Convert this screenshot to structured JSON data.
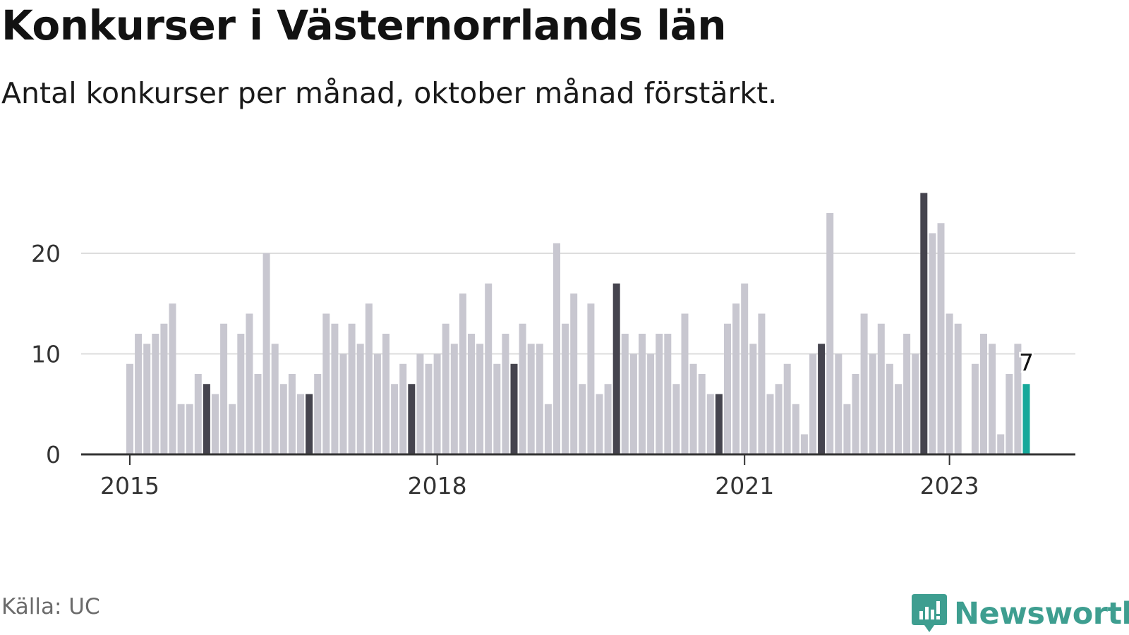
{
  "header": {
    "title": "Konkurser i Västernorrlands län",
    "subtitle": "Antal konkurser per månad, oktober månad förstärkt."
  },
  "footer": {
    "source": "Källa: UC",
    "brand": "Newsworthy",
    "brand_icon": "newsworthy-logo-icon"
  },
  "colors": {
    "bar": "#c8c7d0",
    "highlight": "#45444e",
    "latest": "#16a89a",
    "grid": "#dddddd",
    "axis": "#333333",
    "brand": "#3e9e90"
  },
  "chart_data": {
    "type": "bar",
    "x_start": "2015-01",
    "x_end": "2023-10",
    "x_tick_labels": [
      "2015",
      "2018",
      "2021",
      "2023"
    ],
    "y_ticks": [
      0,
      10,
      20
    ],
    "ylim": [
      0,
      28
    ],
    "grid": true,
    "highlight_month": "oktober",
    "last_value_label": "7",
    "series": [
      {
        "values": [
          9,
          12,
          11,
          12,
          13,
          15,
          5,
          5,
          8,
          7,
          6,
          13,
          5,
          12,
          14,
          8,
          20,
          11,
          7,
          8,
          6,
          6,
          8,
          14,
          13,
          10,
          13,
          11,
          15,
          10,
          12,
          7,
          9,
          7,
          10,
          9,
          10,
          13,
          11,
          16,
          12,
          11,
          17,
          9,
          12,
          9,
          13,
          11,
          11,
          5,
          21,
          13,
          16,
          7,
          15,
          6,
          7,
          17,
          12,
          10,
          12,
          10,
          12,
          12,
          7,
          14,
          9,
          8,
          6,
          6,
          13,
          15,
          17,
          11,
          14,
          6,
          7,
          9,
          5,
          2,
          10,
          11,
          24,
          10,
          5,
          8,
          14,
          10,
          13,
          9,
          7,
          12,
          10,
          26,
          22,
          23,
          14,
          13,
          0,
          9,
          12,
          11,
          2,
          8,
          11,
          7
        ]
      }
    ]
  }
}
